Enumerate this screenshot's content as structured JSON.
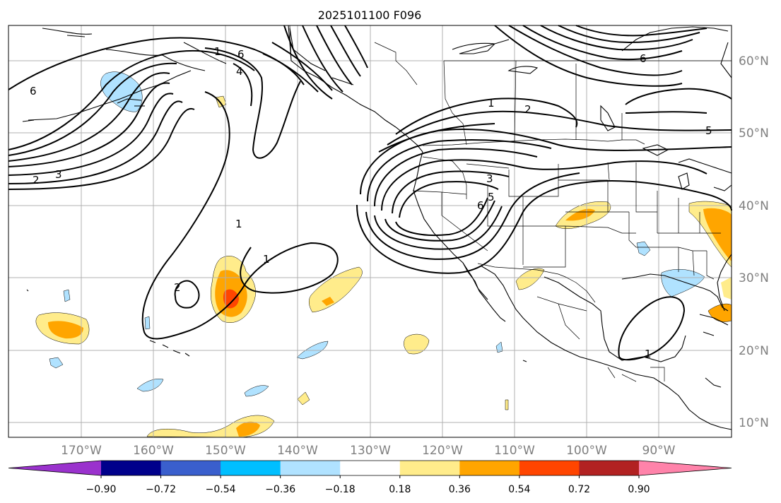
{
  "title": "2025101100 F096",
  "longitude_labels": [
    "170°W",
    "160°W",
    "150°W",
    "140°W",
    "130°W",
    "120°W",
    "110°W",
    "100°W",
    "90°W"
  ],
  "latitude_labels": [
    "60°N",
    "50°N",
    "40°N",
    "30°N",
    "20°N",
    "10°N"
  ],
  "colorbar": {
    "tick_labels": [
      "−0.90",
      "−0.72",
      "−0.54",
      "−0.36",
      "−0.18",
      "0.18",
      "0.36",
      "0.54",
      "0.72",
      "0.90"
    ],
    "colors": [
      "#9a32cd",
      "#00008b",
      "#3a5fcd",
      "#00bfff",
      "#b0e2ff",
      "#ffffff",
      "#ffec8b",
      "#ffa500",
      "#ff4500",
      "#b22222",
      "#ff83aa"
    ]
  },
  "contour_labels": [
    "6",
    "3",
    "2",
    "6",
    "4",
    "1",
    "1",
    "2",
    "1",
    "2",
    "6",
    "5",
    "3",
    "6",
    "5",
    "1",
    "1"
  ]
}
